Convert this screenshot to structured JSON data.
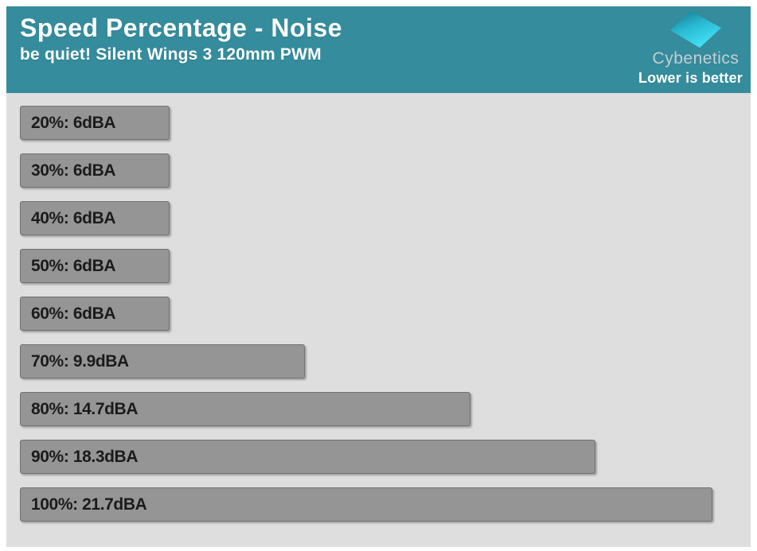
{
  "header": {
    "title": "Speed Percentage - Noise",
    "subtitle": "be quiet! Silent Wings 3 120mm PWM",
    "brand_name": "Cybenetics",
    "note": "Lower is better"
  },
  "colors": {
    "header_bg": "#348c9c",
    "chart_bg": "#dedede",
    "bar_fill": "#959595",
    "bar_border": "#717171",
    "bar_text": "#1b1b1b",
    "brand_text": "#c6ced3",
    "note_text": "#ffffff",
    "title_text": "#ffffff",
    "logo_gradient": [
      "#117585",
      "#29b9d2",
      "#43e1f6"
    ]
  },
  "chart_data": {
    "type": "bar",
    "orientation": "horizontal",
    "title": "Speed Percentage - Noise",
    "subtitle": "be quiet! Silent Wings 3 120mm PWM",
    "note": "Lower is better",
    "unit": "dBA",
    "categories": [
      "20%",
      "30%",
      "40%",
      "50%",
      "60%",
      "70%",
      "80%",
      "90%",
      "100%"
    ],
    "values": [
      6,
      6,
      6,
      6,
      6,
      9.9,
      14.7,
      18.3,
      21.7
    ],
    "labels": [
      "20%: 6dBA",
      "30%: 6dBA",
      "40%: 6dBA",
      "50%: 6dBA",
      "60%: 6dBA",
      "70%: 9.9dBA",
      "80%: 14.7dBA",
      "90%: 18.3dBA",
      "100%: 21.7dBA"
    ],
    "legend_position": "none",
    "grid": false
  }
}
